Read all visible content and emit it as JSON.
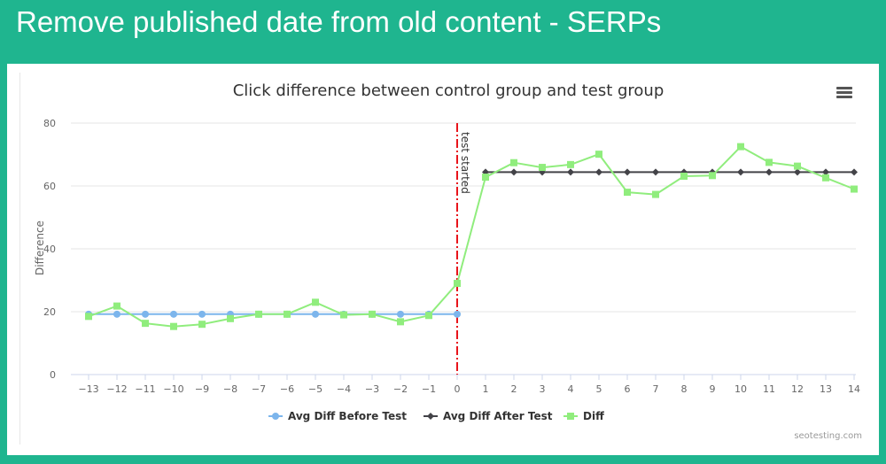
{
  "slide": {
    "title": "Remove published date from old content - SERPs"
  },
  "chart_data": {
    "type": "line",
    "title": "Click difference between control group and test group",
    "ylabel": "Difference",
    "xlabel": "",
    "xlim": [
      -13,
      14
    ],
    "ylim": [
      0,
      80
    ],
    "yticks": [
      0,
      20,
      40,
      60,
      80
    ],
    "xticks": [
      -13,
      -12,
      -11,
      -10,
      -9,
      -8,
      -7,
      -6,
      -5,
      -4,
      -3,
      -2,
      -1,
      0,
      1,
      2,
      3,
      4,
      5,
      6,
      7,
      8,
      9,
      10,
      11,
      12,
      13,
      14
    ],
    "grid": true,
    "legend_position": "bottom-center",
    "series": [
      {
        "name": "Avg Diff Before Test",
        "color": "#7cb5ec",
        "marker": "circle",
        "x": [
          -13,
          -12,
          -11,
          -10,
          -9,
          -8,
          -7,
          -6,
          -5,
          -4,
          -3,
          -2,
          -1,
          0
        ],
        "values": [
          19.2,
          19.2,
          19.2,
          19.2,
          19.2,
          19.2,
          19.2,
          19.2,
          19.2,
          19.2,
          19.2,
          19.2,
          19.2,
          19.2
        ]
      },
      {
        "name": "Avg Diff After Test",
        "color": "#434348",
        "marker": "diamond",
        "x": [
          1,
          2,
          3,
          4,
          5,
          6,
          7,
          8,
          9,
          10,
          11,
          12,
          13,
          14
        ],
        "values": [
          64.4,
          64.4,
          64.4,
          64.4,
          64.4,
          64.4,
          64.4,
          64.4,
          64.4,
          64.4,
          64.4,
          64.4,
          64.4,
          64.4
        ]
      },
      {
        "name": "Diff",
        "color": "#90ed7d",
        "marker": "square",
        "x": [
          -13,
          -12,
          -11,
          -10,
          -9,
          -8,
          -7,
          -6,
          -5,
          -4,
          -3,
          -2,
          -1,
          0,
          1,
          2,
          3,
          4,
          5,
          6,
          7,
          8,
          9,
          10,
          11,
          12,
          13,
          14
        ],
        "values": [
          18.5,
          21.8,
          16.3,
          15.3,
          16.0,
          17.8,
          19.2,
          19.2,
          23.0,
          19.0,
          19.2,
          16.8,
          18.8,
          29.0,
          62.8,
          67.4,
          65.9,
          66.8,
          70.1,
          58.0,
          57.3,
          63.1,
          63.3,
          72.5,
          67.5,
          66.3,
          62.6,
          59.0
        ]
      }
    ],
    "annotations": [
      {
        "type": "vertical-line",
        "x": 0,
        "label": "test started",
        "color": "#e8141b"
      }
    ],
    "credit": "seotesting.com"
  }
}
